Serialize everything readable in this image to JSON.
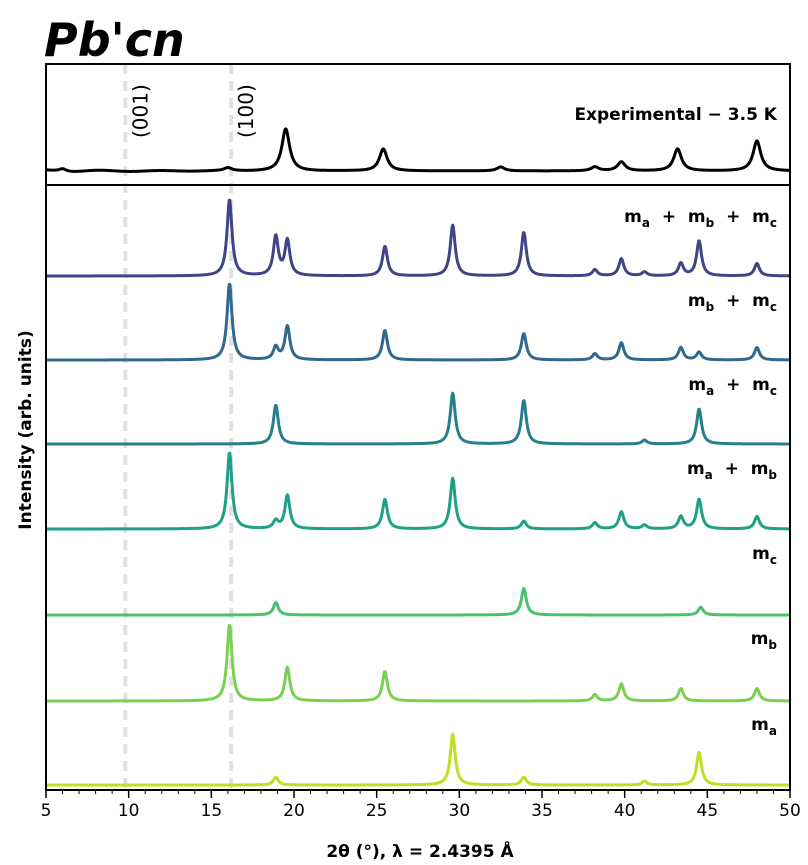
{
  "figure": {
    "title": "Pb'cn"
  },
  "chart_data": {
    "type": "line",
    "title": "Pb'cn",
    "xlabel": "2θ (°), λ = 2.4395 Å",
    "ylabel": "Intensity (arb. units)",
    "xlim": [
      5,
      50
    ],
    "xticks": [
      "5",
      "10",
      "15",
      "20",
      "25",
      "30",
      "35",
      "40",
      "45",
      "50"
    ],
    "grid": false,
    "legend": "none",
    "reference_lines": [
      {
        "x": 9.8,
        "label": "(001)",
        "color": "#e0e0e0",
        "style": "dashed"
      },
      {
        "x": 16.2,
        "label": "(100)",
        "color": "#e0e0e0",
        "style": "dashed"
      }
    ],
    "experimental": {
      "name": "Experimental − 3.5 K",
      "color": "#000000",
      "background_level": 0.05,
      "peaks": [
        {
          "x": 6.0,
          "h": 0.03
        },
        {
          "x": 16.0,
          "h": 0.03
        },
        {
          "x": 19.5,
          "h": 0.42
        },
        {
          "x": 25.4,
          "h": 0.22
        },
        {
          "x": 32.5,
          "h": 0.04
        },
        {
          "x": 38.2,
          "h": 0.04
        },
        {
          "x": 39.8,
          "h": 0.09
        },
        {
          "x": 43.2,
          "h": 0.22
        },
        {
          "x": 48.0,
          "h": 0.3
        }
      ]
    },
    "series": [
      {
        "label_parts": [
          [
            "m",
            "a"
          ],
          [
            "m",
            "b"
          ],
          [
            "m",
            "c"
          ]
        ],
        "color": "#414487",
        "peaks": [
          {
            "x": 16.1,
            "h": 0.98
          },
          {
            "x": 18.9,
            "h": 0.5
          },
          {
            "x": 19.6,
            "h": 0.45
          },
          {
            "x": 25.5,
            "h": 0.38
          },
          {
            "x": 29.6,
            "h": 0.65
          },
          {
            "x": 33.9,
            "h": 0.56
          },
          {
            "x": 38.2,
            "h": 0.08
          },
          {
            "x": 39.8,
            "h": 0.22
          },
          {
            "x": 41.2,
            "h": 0.05
          },
          {
            "x": 43.4,
            "h": 0.16
          },
          {
            "x": 44.5,
            "h": 0.45
          },
          {
            "x": 48.0,
            "h": 0.16
          }
        ]
      },
      {
        "label_parts": [
          [
            "m",
            "b"
          ],
          [
            "m",
            "c"
          ]
        ],
        "color": "#30688e",
        "peaks": [
          {
            "x": 16.1,
            "h": 0.98
          },
          {
            "x": 18.9,
            "h": 0.16
          },
          {
            "x": 19.6,
            "h": 0.43
          },
          {
            "x": 25.5,
            "h": 0.38
          },
          {
            "x": 33.9,
            "h": 0.34
          },
          {
            "x": 38.2,
            "h": 0.08
          },
          {
            "x": 39.8,
            "h": 0.22
          },
          {
            "x": 43.4,
            "h": 0.16
          },
          {
            "x": 44.5,
            "h": 0.1
          },
          {
            "x": 48.0,
            "h": 0.16
          }
        ]
      },
      {
        "label_parts": [
          [
            "m",
            "a"
          ],
          [
            "m",
            "c"
          ]
        ],
        "color": "#277f8e",
        "peaks": [
          {
            "x": 18.9,
            "h": 0.5
          },
          {
            "x": 29.6,
            "h": 0.65
          },
          {
            "x": 33.9,
            "h": 0.56
          },
          {
            "x": 41.2,
            "h": 0.05
          },
          {
            "x": 44.5,
            "h": 0.45
          }
        ]
      },
      {
        "label_parts": [
          [
            "m",
            "a"
          ],
          [
            "m",
            "b"
          ]
        ],
        "color": "#1fa187",
        "peaks": [
          {
            "x": 16.1,
            "h": 0.98
          },
          {
            "x": 18.9,
            "h": 0.1
          },
          {
            "x": 19.6,
            "h": 0.43
          },
          {
            "x": 25.5,
            "h": 0.38
          },
          {
            "x": 29.6,
            "h": 0.65
          },
          {
            "x": 33.9,
            "h": 0.1
          },
          {
            "x": 38.2,
            "h": 0.08
          },
          {
            "x": 39.8,
            "h": 0.22
          },
          {
            "x": 41.2,
            "h": 0.05
          },
          {
            "x": 43.4,
            "h": 0.16
          },
          {
            "x": 44.5,
            "h": 0.38
          },
          {
            "x": 48.0,
            "h": 0.16
          }
        ]
      },
      {
        "label_parts": [
          [
            "m",
            "c"
          ]
        ],
        "color": "#4ac16d",
        "peaks": [
          {
            "x": 18.9,
            "h": 0.16
          },
          {
            "x": 33.9,
            "h": 0.34
          },
          {
            "x": 44.6,
            "h": 0.1
          }
        ]
      },
      {
        "label_parts": [
          [
            "m",
            "b"
          ]
        ],
        "color": "#7ad151",
        "peaks": [
          {
            "x": 16.1,
            "h": 0.98
          },
          {
            "x": 19.6,
            "h": 0.43
          },
          {
            "x": 25.5,
            "h": 0.38
          },
          {
            "x": 38.2,
            "h": 0.08
          },
          {
            "x": 39.8,
            "h": 0.22
          },
          {
            "x": 43.4,
            "h": 0.16
          },
          {
            "x": 48.0,
            "h": 0.16
          }
        ]
      },
      {
        "label_parts": [
          [
            "m",
            "a"
          ]
        ],
        "color": "#bddf26",
        "peaks": [
          {
            "x": 18.9,
            "h": 0.1
          },
          {
            "x": 29.6,
            "h": 0.65
          },
          {
            "x": 33.9,
            "h": 0.1
          },
          {
            "x": 41.2,
            "h": 0.05
          },
          {
            "x": 44.5,
            "h": 0.42
          }
        ]
      }
    ]
  }
}
